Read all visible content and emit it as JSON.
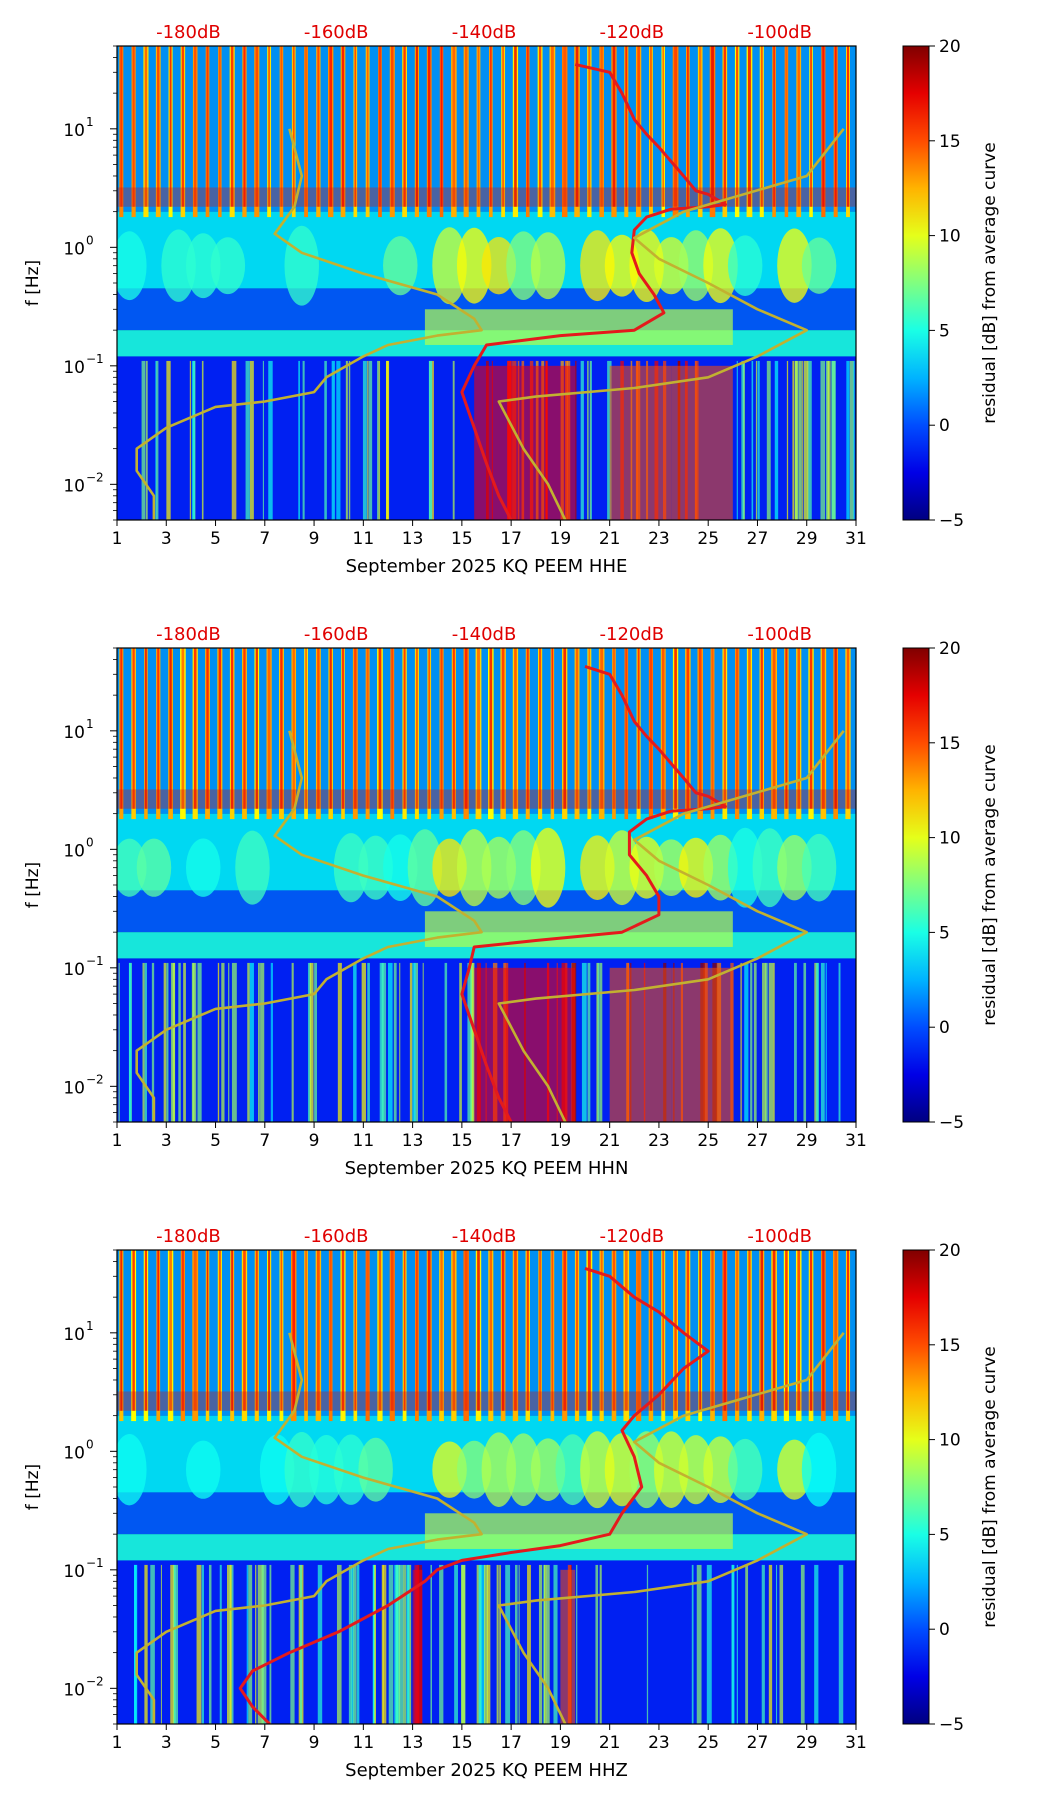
{
  "figure": {
    "xticks": [
      1,
      3,
      5,
      7,
      9,
      11,
      13,
      15,
      17,
      19,
      21,
      23,
      25,
      27,
      29,
      31
    ],
    "yticks": [
      {
        "exp": "−2",
        "value": 0.01
      },
      {
        "exp": "−1",
        "value": 0.1
      },
      {
        "exp": "0",
        "value": 1
      },
      {
        "exp": "1",
        "value": 10
      }
    ],
    "ylabel": "f [Hz]",
    "colorbar_label": "residual [dB] from average curve",
    "colorbar_ticks": [
      "20",
      "15",
      "10",
      "5",
      "0",
      "−5"
    ],
    "db_labels": [
      "-180dB",
      "-160dB",
      "-140dB",
      "-120dB",
      "-100dB"
    ],
    "colors": {
      "mean_curve": "#e41a1c",
      "reference_curve": "#c2b130",
      "db_label": "#e00000"
    }
  },
  "chart_data": [
    {
      "type": "heatmap",
      "title": "",
      "xlabel": "September 2025 KQ PEEM  HHE",
      "ylabel": "f [Hz]",
      "xlim": [
        1,
        31
      ],
      "ylim": [
        0.005,
        50
      ],
      "colorbar_range": [
        -5,
        20
      ],
      "series": [
        {
          "name": "mean curve (dB → x)",
          "points": [
            [
              19.6,
              35
            ],
            [
              21,
              30
            ],
            [
              21.5,
              20
            ],
            [
              22,
              12
            ],
            [
              22.5,
              9
            ],
            [
              23,
              7
            ],
            [
              24,
              4
            ],
            [
              24.5,
              3
            ],
            [
              25,
              2.8
            ],
            [
              25.7,
              2.3
            ],
            [
              25,
              2.2
            ],
            [
              23.5,
              2.1
            ],
            [
              22.5,
              1.8
            ],
            [
              22,
              1.4
            ],
            [
              21.9,
              0.9
            ],
            [
              22.2,
              0.6
            ],
            [
              22.8,
              0.4
            ],
            [
              23.2,
              0.28
            ],
            [
              22,
              0.2
            ],
            [
              19,
              0.18
            ],
            [
              16,
              0.15
            ],
            [
              15.5,
              0.1
            ],
            [
              15,
              0.06
            ],
            [
              15.5,
              0.03
            ],
            [
              16,
              0.015
            ],
            [
              16.5,
              0.008
            ],
            [
              17,
              0.005
            ]
          ]
        },
        {
          "name": "reference curve",
          "points": [
            [
              30.5,
              10
            ],
            [
              29,
              4
            ],
            [
              24,
              2
            ],
            [
              22,
              1.2
            ],
            [
              23,
              0.8
            ],
            [
              25,
              0.5
            ],
            [
              27,
              0.3
            ],
            [
              29,
              0.2
            ],
            [
              27,
              0.12
            ],
            [
              25,
              0.08
            ],
            [
              22,
              0.065
            ],
            [
              18,
              0.055
            ],
            [
              16.5,
              0.05
            ],
            [
              17.5,
              0.02
            ],
            [
              18.5,
              0.01
            ],
            [
              19.2,
              0.005
            ]
          ]
        },
        {
          "name": "low-noise curve",
          "points": [
            [
              8,
              10
            ],
            [
              8.5,
              4
            ],
            [
              8.2,
              2.2
            ],
            [
              7.4,
              1.3
            ],
            [
              8.5,
              0.9
            ],
            [
              11,
              0.6
            ],
            [
              14,
              0.4
            ],
            [
              15.5,
              0.25
            ],
            [
              15.8,
              0.2
            ],
            [
              14,
              0.18
            ],
            [
              12,
              0.15
            ],
            [
              11,
              0.12
            ],
            [
              9.5,
              0.08
            ],
            [
              9,
              0.06
            ],
            [
              7,
              0.05
            ],
            [
              5,
              0.045
            ],
            [
              3,
              0.03
            ],
            [
              1.8,
              0.02
            ],
            [
              1.8,
              0.013
            ],
            [
              2.5,
              0.008
            ],
            [
              2.5,
              0.005
            ]
          ]
        }
      ]
    },
    {
      "type": "heatmap",
      "title": "",
      "xlabel": "September 2025 KQ PEEM  HHN",
      "ylabel": "f [Hz]",
      "xlim": [
        1,
        31
      ],
      "ylim": [
        0.005,
        50
      ],
      "colorbar_range": [
        -5,
        20
      ],
      "series": [
        {
          "name": "mean curve (dB → x)",
          "points": [
            [
              20,
              35
            ],
            [
              21,
              30
            ],
            [
              21.5,
              20
            ],
            [
              22,
              12
            ],
            [
              22.5,
              9
            ],
            [
              23,
              7
            ],
            [
              24,
              4
            ],
            [
              24.5,
              3
            ],
            [
              25,
              2.8
            ],
            [
              25.7,
              2.3
            ],
            [
              25,
              2.2
            ],
            [
              23.5,
              2.1
            ],
            [
              22.5,
              1.8
            ],
            [
              21.8,
              1.4
            ],
            [
              21.8,
              0.9
            ],
            [
              22.5,
              0.6
            ],
            [
              23,
              0.4
            ],
            [
              23,
              0.28
            ],
            [
              21.5,
              0.2
            ],
            [
              18,
              0.17
            ],
            [
              15.5,
              0.15
            ],
            [
              15.3,
              0.1
            ],
            [
              15,
              0.06
            ],
            [
              15.5,
              0.03
            ],
            [
              16,
              0.015
            ],
            [
              16.5,
              0.008
            ],
            [
              17,
              0.005
            ]
          ]
        },
        {
          "name": "reference curve",
          "points": [
            [
              30.5,
              10
            ],
            [
              29,
              4
            ],
            [
              24,
              2
            ],
            [
              22,
              1.2
            ],
            [
              23,
              0.8
            ],
            [
              25,
              0.5
            ],
            [
              27,
              0.3
            ],
            [
              29,
              0.2
            ],
            [
              27,
              0.12
            ],
            [
              25,
              0.08
            ],
            [
              22,
              0.065
            ],
            [
              18,
              0.055
            ],
            [
              16.5,
              0.05
            ],
            [
              17.5,
              0.02
            ],
            [
              18.5,
              0.01
            ],
            [
              19.2,
              0.005
            ]
          ]
        },
        {
          "name": "low-noise curve",
          "points": [
            [
              8,
              10
            ],
            [
              8.5,
              4
            ],
            [
              8.2,
              2.2
            ],
            [
              7.4,
              1.3
            ],
            [
              8.5,
              0.9
            ],
            [
              11,
              0.6
            ],
            [
              14,
              0.4
            ],
            [
              15.5,
              0.25
            ],
            [
              15.8,
              0.2
            ],
            [
              14,
              0.18
            ],
            [
              12,
              0.15
            ],
            [
              11,
              0.12
            ],
            [
              9.5,
              0.08
            ],
            [
              9,
              0.06
            ],
            [
              7,
              0.05
            ],
            [
              5,
              0.045
            ],
            [
              3,
              0.03
            ],
            [
              1.8,
              0.02
            ],
            [
              1.8,
              0.013
            ],
            [
              2.5,
              0.008
            ],
            [
              2.5,
              0.005
            ]
          ]
        }
      ]
    },
    {
      "type": "heatmap",
      "title": "",
      "xlabel": "September 2025 KQ PEEM  HHZ",
      "ylabel": "f [Hz]",
      "xlim": [
        1,
        31
      ],
      "ylim": [
        0.005,
        50
      ],
      "colorbar_range": [
        -5,
        20
      ],
      "series": [
        {
          "name": "mean curve (dB → x)",
          "points": [
            [
              20,
              35
            ],
            [
              21,
              30
            ],
            [
              22,
              20
            ],
            [
              23,
              15
            ],
            [
              24,
              10
            ],
            [
              25,
              7
            ],
            [
              24,
              5
            ],
            [
              23,
              3
            ],
            [
              22,
              2
            ],
            [
              21.5,
              1.5
            ],
            [
              22,
              0.9
            ],
            [
              22.3,
              0.5
            ],
            [
              21.5,
              0.3
            ],
            [
              21,
              0.2
            ],
            [
              19,
              0.16
            ],
            [
              17,
              0.14
            ],
            [
              15,
              0.12
            ],
            [
              14,
              0.1
            ],
            [
              13.5,
              0.08
            ],
            [
              12,
              0.05
            ],
            [
              10,
              0.03
            ],
            [
              8,
              0.02
            ],
            [
              6.5,
              0.014
            ],
            [
              6,
              0.01
            ],
            [
              6.5,
              0.007
            ],
            [
              7.2,
              0.005
            ]
          ]
        },
        {
          "name": "reference curve",
          "points": [
            [
              30.5,
              10
            ],
            [
              29,
              4
            ],
            [
              24,
              2
            ],
            [
              22,
              1.2
            ],
            [
              23,
              0.8
            ],
            [
              25,
              0.5
            ],
            [
              27,
              0.3
            ],
            [
              29,
              0.2
            ],
            [
              27,
              0.12
            ],
            [
              25,
              0.08
            ],
            [
              22,
              0.065
            ],
            [
              18,
              0.055
            ],
            [
              16.5,
              0.05
            ],
            [
              17.5,
              0.02
            ],
            [
              18.5,
              0.01
            ],
            [
              19.2,
              0.005
            ]
          ]
        },
        {
          "name": "low-noise curve",
          "points": [
            [
              8,
              10
            ],
            [
              8.5,
              4
            ],
            [
              8.2,
              2.2
            ],
            [
              7.4,
              1.3
            ],
            [
              8.5,
              0.9
            ],
            [
              11,
              0.6
            ],
            [
              14,
              0.4
            ],
            [
              15.5,
              0.25
            ],
            [
              15.8,
              0.2
            ],
            [
              14,
              0.18
            ],
            [
              12,
              0.15
            ],
            [
              11,
              0.12
            ],
            [
              9.5,
              0.08
            ],
            [
              9,
              0.06
            ],
            [
              7,
              0.05
            ],
            [
              5,
              0.045
            ],
            [
              3,
              0.03
            ],
            [
              1.8,
              0.02
            ],
            [
              1.8,
              0.013
            ],
            [
              2.5,
              0.008
            ],
            [
              2.5,
              0.005
            ]
          ]
        }
      ]
    }
  ]
}
